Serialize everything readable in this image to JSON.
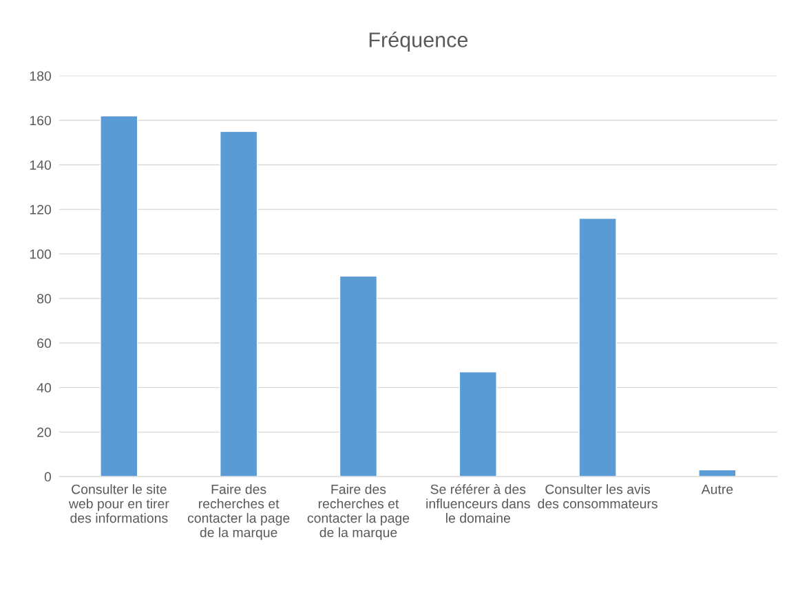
{
  "chart_data": {
    "type": "bar",
    "title": "Fréquence",
    "categories": [
      "Consulter le site web pour en tirer des informations",
      "Faire des recherches et contacter la page de la marque",
      "Faire des recherches et contacter la page de la marque",
      "Se référer à des influenceurs dans le domaine",
      "Consulter les avis des consommateurs",
      "Autre"
    ],
    "values": [
      162,
      155,
      90,
      47,
      116,
      3
    ],
    "color": "#5b9bd5",
    "ylim": [
      0,
      180
    ],
    "yticks": [
      0,
      20,
      40,
      60,
      80,
      100,
      120,
      140,
      160,
      180
    ],
    "grid": "y",
    "legend": false
  }
}
